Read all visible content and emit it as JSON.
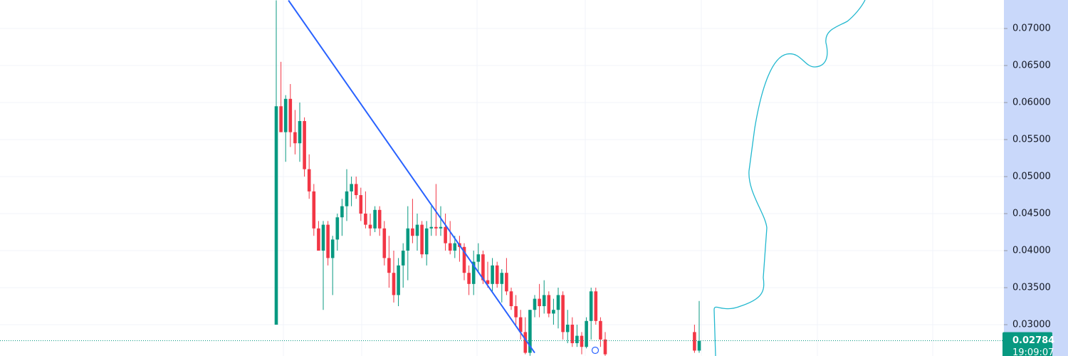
{
  "chart_data": {
    "type": "candlestick",
    "ohlc_order": [
      "open",
      "high",
      "low",
      "close"
    ],
    "ohlc": [
      [
        0.03,
        0.0738,
        0.03,
        0.0595
      ],
      [
        0.0595,
        0.0655,
        0.056,
        0.056
      ],
      [
        0.056,
        0.061,
        0.052,
        0.0605
      ],
      [
        0.0605,
        0.0625,
        0.054,
        0.056
      ],
      [
        0.056,
        0.059,
        0.053,
        0.0545
      ],
      [
        0.0545,
        0.06,
        0.052,
        0.0575
      ],
      [
        0.0575,
        0.058,
        0.05,
        0.051
      ],
      [
        0.051,
        0.053,
        0.047,
        0.048
      ],
      [
        0.048,
        0.049,
        0.042,
        0.043
      ],
      [
        0.043,
        0.044,
        0.04,
        0.04
      ],
      [
        0.04,
        0.044,
        0.032,
        0.0435
      ],
      [
        0.0435,
        0.044,
        0.038,
        0.039
      ],
      [
        0.039,
        0.042,
        0.034,
        0.0415
      ],
      [
        0.0415,
        0.045,
        0.04,
        0.0445
      ],
      [
        0.0445,
        0.047,
        0.042,
        0.046
      ],
      [
        0.046,
        0.051,
        0.044,
        0.048
      ],
      [
        0.048,
        0.05,
        0.046,
        0.049
      ],
      [
        0.049,
        0.05,
        0.047,
        0.0475
      ],
      [
        0.0475,
        0.0485,
        0.044,
        0.045
      ],
      [
        0.045,
        0.048,
        0.043,
        0.0435
      ],
      [
        0.0435,
        0.045,
        0.042,
        0.043
      ],
      [
        0.043,
        0.046,
        0.0425,
        0.0455
      ],
      [
        0.0455,
        0.046,
        0.042,
        0.043
      ],
      [
        0.043,
        0.044,
        0.038,
        0.039
      ],
      [
        0.039,
        0.042,
        0.035,
        0.037
      ],
      [
        0.037,
        0.04,
        0.033,
        0.034
      ],
      [
        0.034,
        0.039,
        0.0325,
        0.038
      ],
      [
        0.038,
        0.041,
        0.035,
        0.04
      ],
      [
        0.04,
        0.046,
        0.036,
        0.043
      ],
      [
        0.043,
        0.047,
        0.041,
        0.042
      ],
      [
        0.042,
        0.045,
        0.04,
        0.0435
      ],
      [
        0.0435,
        0.044,
        0.039,
        0.0395
      ],
      [
        0.0395,
        0.044,
        0.038,
        0.043
      ],
      [
        0.043,
        0.046,
        0.042,
        0.0432
      ],
      [
        0.0432,
        0.049,
        0.042,
        0.043
      ],
      [
        0.043,
        0.046,
        0.042,
        0.0432
      ],
      [
        0.0432,
        0.045,
        0.04,
        0.041
      ],
      [
        0.041,
        0.044,
        0.0395,
        0.04
      ],
      [
        0.04,
        0.042,
        0.039,
        0.041
      ],
      [
        0.041,
        0.042,
        0.0385,
        0.0405
      ],
      [
        0.0405,
        0.041,
        0.036,
        0.037
      ],
      [
        0.037,
        0.038,
        0.034,
        0.0355
      ],
      [
        0.0355,
        0.04,
        0.034,
        0.0385
      ],
      [
        0.0385,
        0.041,
        0.037,
        0.0395
      ],
      [
        0.0395,
        0.04,
        0.0355,
        0.036
      ],
      [
        0.036,
        0.0385,
        0.035,
        0.0355
      ],
      [
        0.0355,
        0.039,
        0.0345,
        0.038
      ],
      [
        0.038,
        0.0385,
        0.035,
        0.0355
      ],
      [
        0.0355,
        0.0375,
        0.033,
        0.037
      ],
      [
        0.037,
        0.039,
        0.034,
        0.0345
      ],
      [
        0.0345,
        0.035,
        0.032,
        0.0325
      ],
      [
        0.0325,
        0.034,
        0.03,
        0.031
      ],
      [
        0.031,
        0.032,
        0.028,
        0.029
      ],
      [
        0.029,
        0.031,
        0.026,
        0.0262
      ],
      [
        0.0262,
        0.032,
        0.0258,
        0.032
      ],
      [
        0.032,
        0.034,
        0.031,
        0.0335
      ],
      [
        0.0335,
        0.0355,
        0.031,
        0.0325
      ],
      [
        0.0325,
        0.036,
        0.0315,
        0.034
      ],
      [
        0.034,
        0.0345,
        0.031,
        0.0315
      ],
      [
        0.0315,
        0.0335,
        0.03,
        0.032
      ],
      [
        0.032,
        0.035,
        0.0295,
        0.034
      ],
      [
        0.034,
        0.0345,
        0.028,
        0.029
      ],
      [
        0.029,
        0.032,
        0.0275,
        0.03
      ],
      [
        0.03,
        0.031,
        0.027,
        0.0275
      ],
      [
        0.0275,
        0.03,
        0.027,
        0.0285
      ],
      [
        0.0285,
        0.029,
        0.026,
        0.027
      ],
      [
        0.027,
        0.031,
        0.0268,
        0.0305
      ],
      [
        0.0305,
        0.035,
        0.028,
        0.0345
      ],
      [
        0.0345,
        0.035,
        0.03,
        0.0305
      ],
      [
        0.0305,
        0.031,
        0.027,
        0.028
      ],
      [
        0.028,
        0.029,
        0.0258,
        0.026
      ],
      null,
      null,
      null,
      null,
      null,
      null,
      null,
      null,
      null,
      null,
      null,
      null,
      null,
      null,
      null,
      null,
      null,
      null,
      [
        0.029,
        0.03,
        0.0262,
        0.0265
      ],
      [
        0.0265,
        0.0332,
        0.0262,
        0.0278
      ]
    ],
    "up_color": "#089981",
    "down_color": "#f23645",
    "ylim": [
      0.02577,
      0.07385
    ],
    "yticks": [
      {
        "value": 0.03,
        "label": "0.03000"
      },
      {
        "value": 0.035,
        "label": "0.03500"
      },
      {
        "value": 0.04,
        "label": "0.04000"
      },
      {
        "value": 0.045,
        "label": "0.04500"
      },
      {
        "value": 0.05,
        "label": "0.05000"
      },
      {
        "value": 0.055,
        "label": "0.05500"
      },
      {
        "value": 0.06,
        "label": "0.06000"
      },
      {
        "value": 0.065,
        "label": "0.06500"
      },
      {
        "value": 0.07,
        "label": "0.07000"
      }
    ],
    "grid": true,
    "trendline": {
      "x": [
        2.6,
        55
      ],
      "values": [
        0.0738,
        0.0262
      ],
      "color": "#2962ff"
    },
    "last_price": {
      "value": 0.02784,
      "label": "0.02784"
    },
    "countdown": "19:09:07"
  }
}
